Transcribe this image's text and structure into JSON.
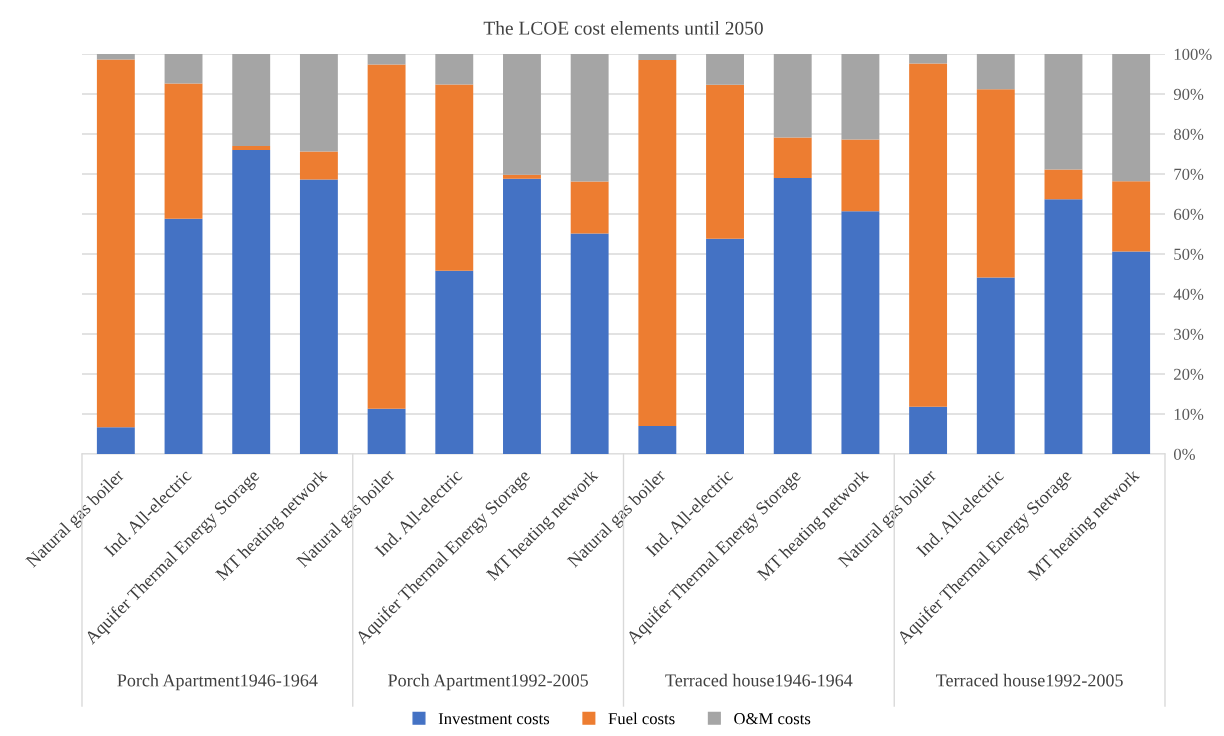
{
  "chart_data": {
    "type": "bar",
    "title": "The LCOE cost elements until 2050",
    "stacked": true,
    "categories": [
      "Natural gas boiler",
      "Ind. All-electric",
      "Aquifer Thermal Energy Storage",
      "MT heating network",
      "Natural gas boiler",
      "Ind. All-electric",
      "Aquifer Thermal Energy Storage",
      "MT heating network",
      "Natural gas boiler",
      "Ind. All-electric",
      "Aquifer Thermal Energy Storage",
      "MT heating network",
      "Natural gas boiler",
      "Ind. All-electric",
      "Aquifer Thermal Energy Storage",
      "MT heating network"
    ],
    "series": [
      {
        "name": "Investment costs",
        "color": "#4472c4",
        "values": [
          6.7,
          58.8,
          76.0,
          68.6,
          11.3,
          45.8,
          68.8,
          55.1,
          7.0,
          53.8,
          69.0,
          60.7,
          11.8,
          44.1,
          63.7,
          50.6
        ]
      },
      {
        "name": "Fuel costs",
        "color": "#ed7d31",
        "values": [
          91.9,
          33.8,
          1.0,
          7.0,
          86.1,
          46.6,
          1.0,
          13.0,
          91.5,
          38.5,
          10.1,
          17.9,
          85.8,
          47.1,
          7.4,
          17.6
        ]
      },
      {
        "name": "O&M costs",
        "color": "#a5a5a5",
        "values": [
          1.4,
          7.4,
          23.0,
          24.4,
          2.6,
          7.6,
          30.2,
          31.9,
          1.5,
          7.7,
          20.9,
          21.4,
          2.4,
          8.8,
          28.9,
          31.8
        ]
      }
    ],
    "annotations": [
      "Porch Apartment1946-1964",
      "Porch Apartment1992-2005",
      "Terraced house1946-1964",
      "Terraced house1992-2005"
    ],
    "ylim": [
      0,
      100
    ],
    "yticks": [
      {
        "value": 0,
        "label": "0%"
      },
      {
        "value": 10,
        "label": "10%"
      },
      {
        "value": 20,
        "label": "20%"
      },
      {
        "value": 30,
        "label": "30%"
      },
      {
        "value": 40,
        "label": "40%"
      },
      {
        "value": 50,
        "label": "50%"
      },
      {
        "value": 60,
        "label": "60%"
      },
      {
        "value": 70,
        "label": "70%"
      },
      {
        "value": 80,
        "label": "80%"
      },
      {
        "value": 90,
        "label": "90%"
      },
      {
        "value": 100,
        "label": "100%"
      }
    ],
    "grid": "y",
    "legend": "bottom"
  }
}
